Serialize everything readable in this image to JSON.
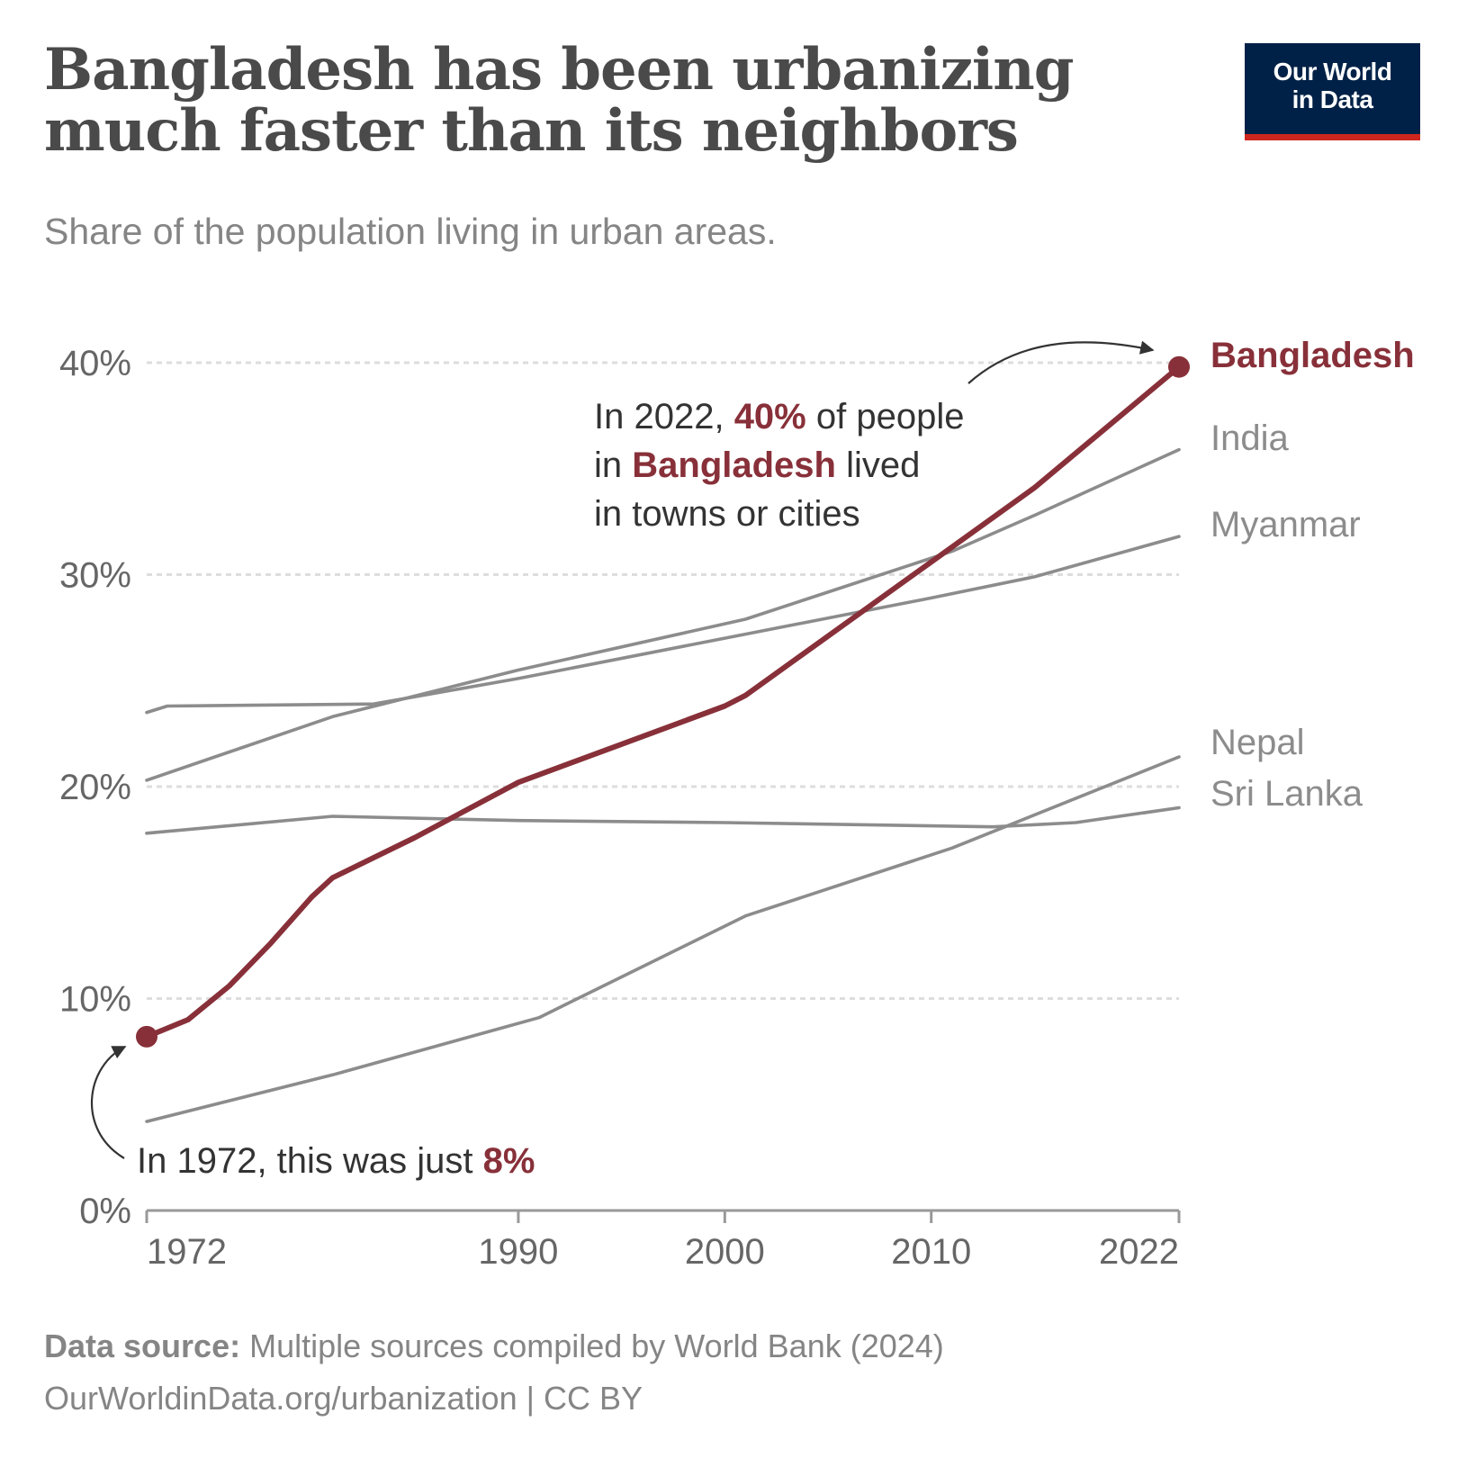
{
  "header": {
    "title_line1": "Bangladesh has been urbanizing",
    "title_line2": "much faster than its neighbors",
    "subtitle": "Share of the population living in urban areas."
  },
  "logo": {
    "line1": "Our World",
    "line2": "in Data"
  },
  "footer": {
    "source_label": "Data source:",
    "source_text": "Multiple sources compiled by World Bank (2024)",
    "url_text": "OurWorldinData.org/urbanization | CC BY"
  },
  "colors": {
    "highlight": "#883039",
    "other": "#8c8c8c",
    "grid": "#dddddd",
    "axis": "#999999"
  },
  "annotations": {
    "a2022": {
      "line1_pre": "In 2022, ",
      "line1_hl": "40%",
      "line1_post": " of people",
      "line2_pre": "in ",
      "line2_hl": "Bangladesh",
      "line2_post": " lived",
      "line3": "in towns or cities"
    },
    "a1972": {
      "pre": "In 1972, this was just ",
      "hl": "8%"
    }
  },
  "chart_data": {
    "type": "line",
    "title": "Bangladesh has been urbanizing much faster than its neighbors",
    "subtitle": "Share of the population living in urban areas.",
    "xlabel": "",
    "ylabel": "",
    "xlim": [
      1972,
      2022
    ],
    "ylim": [
      0,
      40
    ],
    "x_ticks": [
      1972,
      1990,
      2000,
      2010,
      2022
    ],
    "x_tick_labels": [
      "1972",
      "1990",
      "2000",
      "2010",
      "2022"
    ],
    "y_ticks": [
      0,
      10,
      20,
      30,
      40
    ],
    "y_tick_labels": [
      "0%",
      "10%",
      "20%",
      "30%",
      "40%"
    ],
    "grid": "horizontal dashed",
    "series": [
      {
        "name": "Bangladesh",
        "label": "Bangladesh",
        "highlight": true,
        "x": [
          1972,
          1974,
          1976,
          1978,
          1980,
          1981,
          1985,
          1990,
          1995,
          2000,
          2001,
          2005,
          2010,
          2015,
          2022
        ],
        "y": [
          8.2,
          9.0,
          10.6,
          12.6,
          14.8,
          15.7,
          17.6,
          20.2,
          22.0,
          23.8,
          24.3,
          27.1,
          30.6,
          34.1,
          39.8
        ]
      },
      {
        "name": "India",
        "label": "India",
        "x": [
          1972,
          1981,
          1990,
          2001,
          2011,
          2015,
          2022
        ],
        "y": [
          20.3,
          23.3,
          25.5,
          27.9,
          31.1,
          32.8,
          35.9
        ]
      },
      {
        "name": "Myanmar",
        "label": "Myanmar",
        "x": [
          1972,
          1973,
          1983,
          1990,
          2000,
          2010,
          2015,
          2022
        ],
        "y": [
          23.5,
          23.8,
          23.9,
          25.1,
          27.0,
          28.9,
          29.9,
          31.8
        ]
      },
      {
        "name": "Nepal",
        "label": "Nepal",
        "x": [
          1972,
          1981,
          1991,
          2001,
          2011,
          2022
        ],
        "y": [
          4.2,
          6.4,
          9.1,
          13.9,
          17.1,
          21.4
        ]
      },
      {
        "name": "Sri Lanka",
        "label": "Sri Lanka",
        "x": [
          1972,
          1981,
          1990,
          2000,
          2013,
          2017,
          2022
        ],
        "y": [
          17.8,
          18.6,
          18.4,
          18.3,
          18.1,
          18.3,
          19.0
        ]
      }
    ],
    "points": [
      {
        "series": "Bangladesh",
        "x": 1972,
        "y": 8.2
      },
      {
        "series": "Bangladesh",
        "x": 2022,
        "y": 39.8
      }
    ],
    "annotations": [
      "In 2022, 40% of people in Bangladesh lived in towns or cities",
      "In 1972, this was just 8%"
    ]
  }
}
